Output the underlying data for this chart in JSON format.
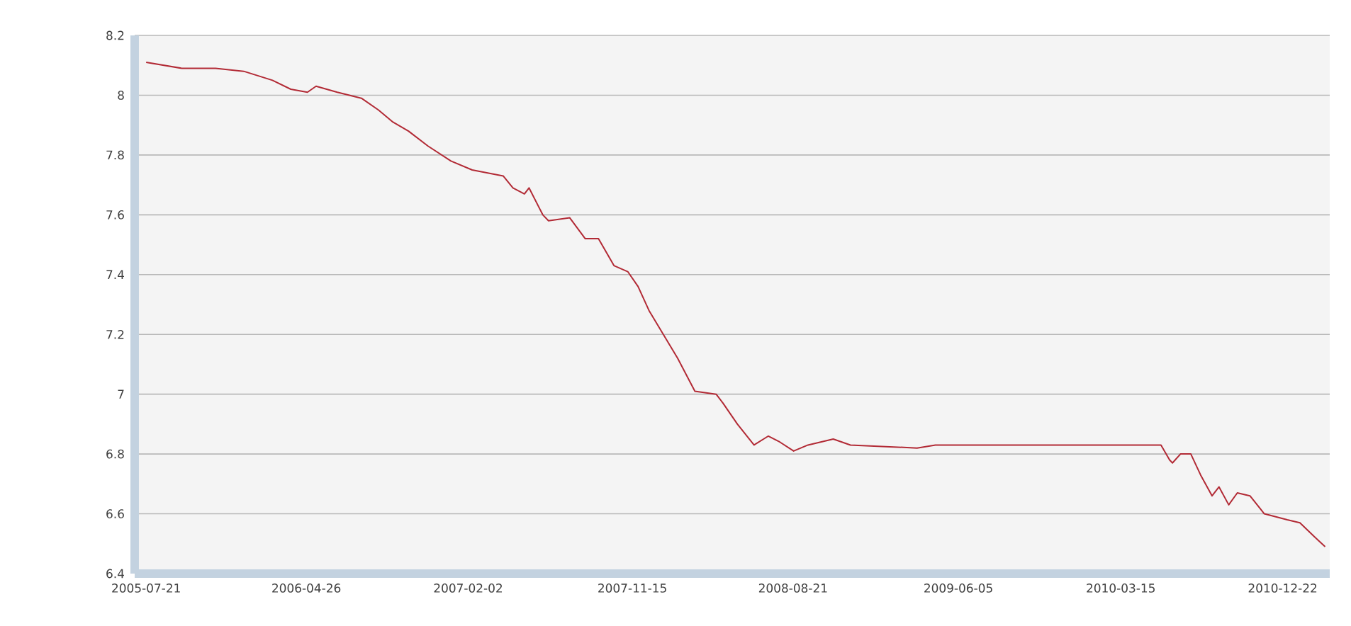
{
  "chart_data": {
    "type": "line",
    "x": [
      "2005-07-21",
      "2005-09-21",
      "2005-11-19",
      "2006-01-07",
      "2006-02-26",
      "2006-03-30",
      "2006-04-28",
      "2006-05-13",
      "2006-06-19",
      "2006-07-31",
      "2006-08-30",
      "2006-09-24",
      "2006-10-21",
      "2006-11-24",
      "2007-01-03",
      "2007-02-09",
      "2007-04-04",
      "2007-04-21",
      "2007-05-11",
      "2007-05-19",
      "2007-06-12",
      "2007-06-22",
      "2007-07-29",
      "2007-08-25",
      "2007-09-17",
      "2007-10-14",
      "2007-11-07",
      "2007-11-25",
      "2007-12-14",
      "2008-01-08",
      "2008-02-02",
      "2008-03-03",
      "2008-04-09",
      "2008-04-21",
      "2008-05-16",
      "2008-06-14",
      "2008-07-09",
      "2008-07-29",
      "2008-08-22",
      "2008-09-16",
      "2008-10-30",
      "2008-11-29",
      "2009-03-25",
      "2009-04-26",
      "2010-05-24",
      "2010-06-08",
      "2010-06-13",
      "2010-06-27",
      "2010-07-15",
      "2010-08-01",
      "2010-08-21",
      "2010-09-02",
      "2010-09-19",
      "2010-10-04",
      "2010-10-26",
      "2010-11-20",
      "2010-12-30",
      "2011-01-21",
      "2011-02-17",
      "2011-03-06"
    ],
    "values": [
      8.11,
      8.09,
      8.09,
      8.08,
      8.05,
      8.02,
      8.01,
      8.03,
      8.01,
      7.99,
      7.95,
      7.91,
      7.88,
      7.83,
      7.78,
      7.75,
      7.73,
      7.69,
      7.67,
      7.69,
      7.6,
      7.58,
      7.59,
      7.52,
      7.52,
      7.43,
      7.41,
      7.36,
      7.28,
      7.2,
      7.12,
      7.01,
      7.0,
      6.97,
      6.9,
      6.83,
      6.86,
      6.84,
      6.81,
      6.83,
      6.85,
      6.83,
      6.82,
      6.83,
      6.83,
      6.78,
      6.77,
      6.8,
      6.8,
      6.73,
      6.66,
      6.69,
      6.63,
      6.67,
      6.66,
      6.6,
      6.58,
      6.57,
      6.52,
      6.49
    ],
    "color": "#b22a35",
    "xlim": [
      "2005-07-01",
      "2011-03-14"
    ],
    "xticks": [
      "2005-07-21",
      "2006-04-26",
      "2007-02-02",
      "2007-11-15",
      "2008-08-21",
      "2009-06-05",
      "2010-03-15",
      "2010-12-22"
    ],
    "ylim": [
      6.4,
      8.2
    ],
    "yticks": [
      6.4,
      6.6,
      6.8,
      7,
      7.2,
      7.4,
      7.6,
      7.8,
      8,
      8.2
    ],
    "grid": "y",
    "marker": "none",
    "line_style": "solid"
  }
}
